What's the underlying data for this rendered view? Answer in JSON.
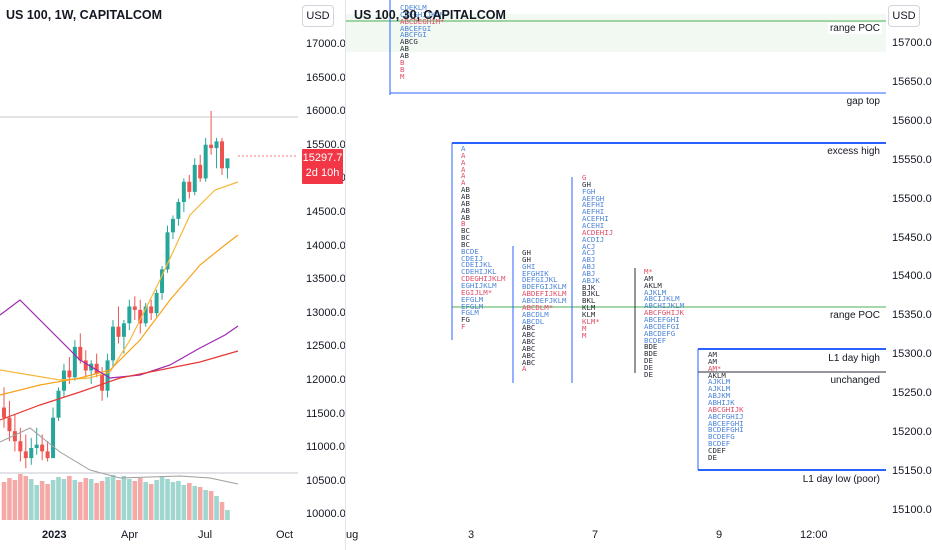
{
  "left_chart": {
    "title": "US 100, 1W, CAPITALCOM",
    "currency": "USD",
    "price_ticks": [
      "17000.0",
      "16500.0",
      "16000.0",
      "15500.0",
      "15000.0",
      "14500.0",
      "14000.0",
      "13500.0",
      "13000.0",
      "12500.0",
      "12000.0",
      "11500.0",
      "11000.0",
      "10500.0",
      "10000.0"
    ],
    "time_ticks": [
      {
        "label": "2023",
        "bold": true
      },
      {
        "label": "Apr",
        "bold": false
      },
      {
        "label": "Jul",
        "bold": false
      },
      {
        "label": "Oct",
        "bold": false
      }
    ],
    "last_price": "15297.7",
    "countdown": "2d 10h"
  },
  "right_chart": {
    "title": "US 100, 30, CAPITALCOM",
    "currency": "USD",
    "price_ticks": [
      "15700.0",
      "15650.0",
      "15600.0",
      "15550.0",
      "15500.0",
      "15450.0",
      "15400.0",
      "15350.0",
      "15300.0",
      "15250.0",
      "15200.0",
      "15150.0",
      "15100.0"
    ],
    "time_ticks": [
      "ug",
      "3",
      "7",
      "9",
      "12:00"
    ],
    "levels": [
      {
        "label": "range POC"
      },
      {
        "label": "gap top"
      },
      {
        "label": "excess high"
      },
      {
        "label": "range POC"
      },
      {
        "label": "L1 day high"
      },
      {
        "label": "unchanged"
      },
      {
        "label": "L1 day low (poor)"
      }
    ],
    "profiles": [
      {
        "rows": [
          {
            "t": "CDEKLM",
            "c": "blue"
          },
          {
            "t": "CDEGHIJKLM",
            "c": "blue"
          },
          {
            "t": "ABCDEGHIM*",
            "c": "red"
          },
          {
            "t": "ABCEFGI",
            "c": "blue"
          },
          {
            "t": "ABCFGI",
            "c": "blue"
          },
          {
            "t": "ABCG",
            "c": "black"
          },
          {
            "t": "AB",
            "c": "black"
          },
          {
            "t": "AB",
            "c": "black"
          },
          {
            "t": "B",
            "c": "red"
          },
          {
            "t": "B",
            "c": "red"
          },
          {
            "t": "M",
            "c": "red"
          }
        ]
      },
      {
        "rows": [
          {
            "t": "A",
            "c": "blue"
          },
          {
            "t": "A",
            "c": "red"
          },
          {
            "t": "A",
            "c": "red"
          },
          {
            "t": "A",
            "c": "red"
          },
          {
            "t": "A",
            "c": "red"
          },
          {
            "t": "A",
            "c": "red"
          },
          {
            "t": "AB",
            "c": "black"
          },
          {
            "t": "AB",
            "c": "black"
          },
          {
            "t": "AB",
            "c": "black"
          },
          {
            "t": "AB",
            "c": "black"
          },
          {
            "t": "AB",
            "c": "black"
          },
          {
            "t": "B",
            "c": "red"
          },
          {
            "t": "BC",
            "c": "black"
          },
          {
            "t": "BC",
            "c": "black"
          },
          {
            "t": "BC",
            "c": "black"
          },
          {
            "t": "BCDE",
            "c": "blue"
          },
          {
            "t": "CDEIJ",
            "c": "blue"
          },
          {
            "t": "CDEIJKL",
            "c": "blue"
          },
          {
            "t": "CDEHIJKL",
            "c": "blue"
          },
          {
            "t": "CDEGHIJKLM",
            "c": "red"
          },
          {
            "t": "EGHIJKLM",
            "c": "blue"
          },
          {
            "t": "EGIJLM*",
            "c": "red"
          },
          {
            "t": "EFGLM",
            "c": "blue"
          },
          {
            "t": "EFGLM",
            "c": "blue"
          },
          {
            "t": "FGLM",
            "c": "blue"
          },
          {
            "t": "FG",
            "c": "black"
          },
          {
            "t": "F",
            "c": "red"
          }
        ]
      },
      {
        "rows": [
          {
            "t": "GH",
            "c": "black"
          },
          {
            "t": "GH",
            "c": "black"
          },
          {
            "t": "GHI",
            "c": "blue"
          },
          {
            "t": "EFGHIK",
            "c": "blue"
          },
          {
            "t": "DEFGIJKL",
            "c": "blue"
          },
          {
            "t": "BDEFGIJKLM",
            "c": "blue"
          },
          {
            "t": "ABDEFIJKLM",
            "c": "red"
          },
          {
            "t": "ABCDEFJKLM",
            "c": "blue"
          },
          {
            "t": "ABCDLM*",
            "c": "red"
          },
          {
            "t": "ABCDLM",
            "c": "blue"
          },
          {
            "t": "ABCDL",
            "c": "blue"
          },
          {
            "t": "ABC",
            "c": "black"
          },
          {
            "t": "ABC",
            "c": "black"
          },
          {
            "t": "ABC",
            "c": "black"
          },
          {
            "t": "ABC",
            "c": "black"
          },
          {
            "t": "ABC",
            "c": "black"
          },
          {
            "t": "ABC",
            "c": "black"
          },
          {
            "t": "A",
            "c": "red"
          }
        ]
      },
      {
        "rows": [
          {
            "t": "G",
            "c": "red"
          },
          {
            "t": "GH",
            "c": "black"
          },
          {
            "t": "FGH",
            "c": "blue"
          },
          {
            "t": "AEFGH",
            "c": "blue"
          },
          {
            "t": "AEFHI",
            "c": "blue"
          },
          {
            "t": "AEFHI",
            "c": "blue"
          },
          {
            "t": "ACEFHI",
            "c": "blue"
          },
          {
            "t": "ACEHI",
            "c": "blue"
          },
          {
            "t": "ACDEHIJ",
            "c": "red"
          },
          {
            "t": "ACDIJ",
            "c": "blue"
          },
          {
            "t": "ACJ",
            "c": "blue"
          },
          {
            "t": "ACJ",
            "c": "blue"
          },
          {
            "t": "ABJ",
            "c": "blue"
          },
          {
            "t": "ABJ",
            "c": "blue"
          },
          {
            "t": "ABJ",
            "c": "blue"
          },
          {
            "t": "ABJK",
            "c": "blue"
          },
          {
            "t": "BJK",
            "c": "black"
          },
          {
            "t": "BJKL",
            "c": "black"
          },
          {
            "t": "BKL",
            "c": "black"
          },
          {
            "t": "KLM",
            "c": "black"
          },
          {
            "t": "KLM",
            "c": "black"
          },
          {
            "t": "KLM*",
            "c": "red"
          },
          {
            "t": "M",
            "c": "red"
          },
          {
            "t": "M",
            "c": "red"
          }
        ]
      },
      {
        "rows": [
          {
            "t": "M*",
            "c": "red"
          },
          {
            "t": "AM",
            "c": "black"
          },
          {
            "t": "AKLM",
            "c": "black"
          },
          {
            "t": "AJKLM",
            "c": "blue"
          },
          {
            "t": "ABCIJKLM",
            "c": "blue"
          },
          {
            "t": "ABCHIJKLM",
            "c": "blue"
          },
          {
            "t": "ABCFGHIJK",
            "c": "red"
          },
          {
            "t": "ABCEFGHI",
            "c": "blue"
          },
          {
            "t": "ABCDEFGI",
            "c": "blue"
          },
          {
            "t": "ABCDEFG",
            "c": "blue"
          },
          {
            "t": "BCDEF",
            "c": "blue"
          },
          {
            "t": "BDE",
            "c": "black"
          },
          {
            "t": "BDE",
            "c": "black"
          },
          {
            "t": "DE",
            "c": "black"
          },
          {
            "t": "DE",
            "c": "black"
          },
          {
            "t": "DE",
            "c": "black"
          }
        ]
      },
      {
        "rows": [
          {
            "t": "AM",
            "c": "black"
          },
          {
            "t": "AM",
            "c": "black"
          },
          {
            "t": "AM*",
            "c": "red"
          },
          {
            "t": "AKLM",
            "c": "black"
          },
          {
            "t": "AJKLM",
            "c": "blue"
          },
          {
            "t": "AJKLM",
            "c": "blue"
          },
          {
            "t": "ABJKM",
            "c": "blue"
          },
          {
            "t": "ABHIJK",
            "c": "blue"
          },
          {
            "t": "ABCGHIJK",
            "c": "red"
          },
          {
            "t": "ABCFGHIJ",
            "c": "blue"
          },
          {
            "t": "ABCEFGHI",
            "c": "blue"
          },
          {
            "t": "BCDEFGHI",
            "c": "blue"
          },
          {
            "t": "BCDEFG",
            "c": "blue"
          },
          {
            "t": "BCDEF",
            "c": "blue"
          },
          {
            "t": "CDEF",
            "c": "black"
          },
          {
            "t": "DE",
            "c": "black"
          }
        ]
      }
    ]
  },
  "colors": {
    "bull": "#26a69a",
    "bear": "#ef5350",
    "ma_fast": "#f6b93b",
    "ma_mid": "#f7a21b",
    "ma_slow": "#9c27b0",
    "ma_long": "#e53935",
    "volume_line": "#9e9e9e",
    "level_blue": "#2962ff",
    "level_green": "#4caf50",
    "badge": "#f23645"
  }
}
